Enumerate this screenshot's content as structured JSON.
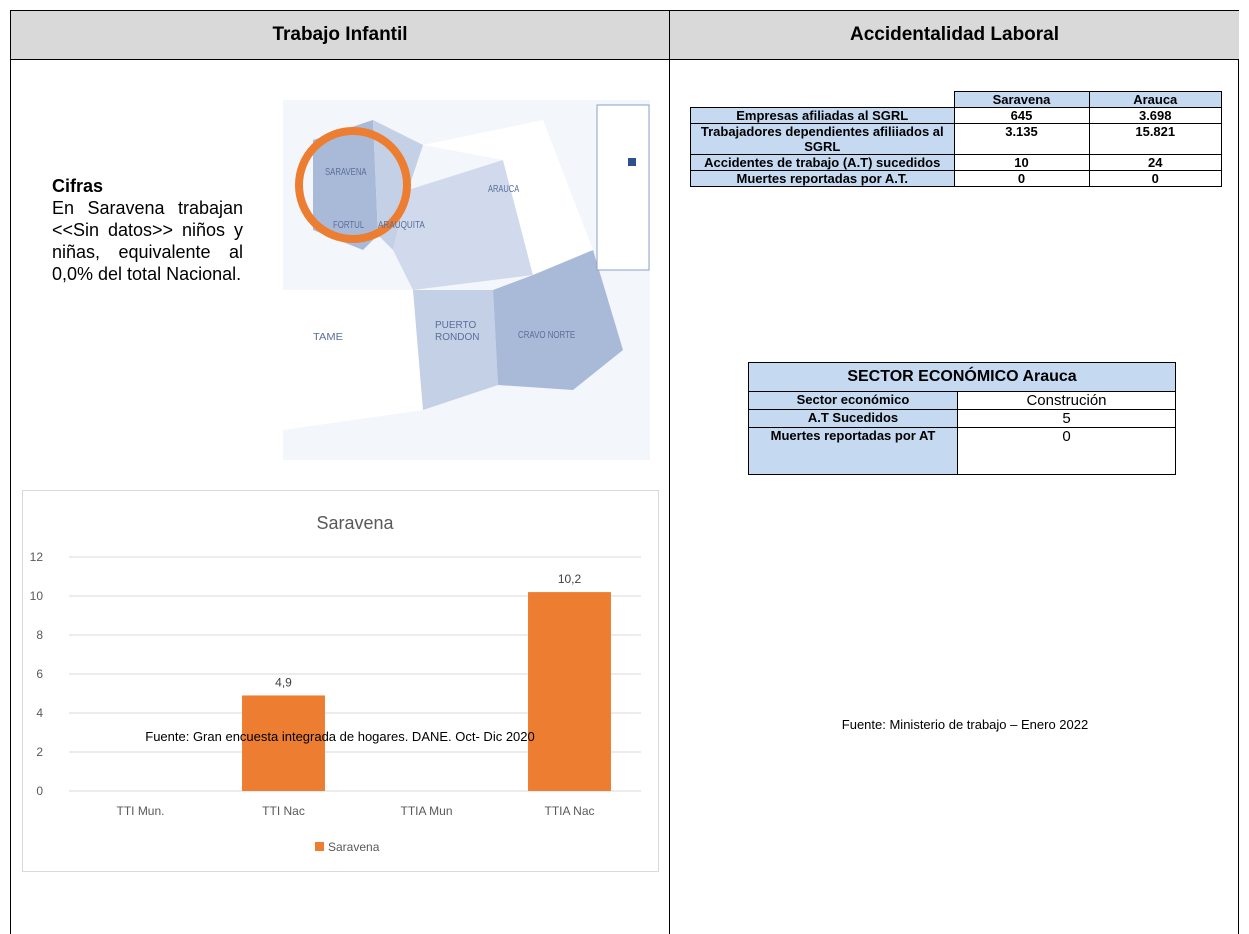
{
  "left": {
    "heading": "Trabajo Infantil",
    "cifras_title": "Cifras",
    "cifras_text": "En Saravena trabajan <<Sin datos>> niños y niñas, equivalente al 0,0% del total Nacional.",
    "map_labels": [
      "SARAVENA",
      "ARAUQUITA",
      "FORTUL",
      "ARAUCA",
      "TAME",
      "PUERTO RONDON",
      "CRAVO NORTE"
    ],
    "source": "Fuente: Gran encuesta integrada de hogares. DANE. Oct- Dic 2020"
  },
  "chart_data": {
    "type": "bar",
    "title": "Saravena",
    "categories": [
      "TTI Mun.",
      "TTI Nac",
      "TTIA Mun",
      "TTIA Nac"
    ],
    "series": [
      {
        "name": "Saravena",
        "color": "#ed7d31",
        "values": [
          null,
          4.9,
          null,
          10.2
        ],
        "value_labels": [
          null,
          "4,9",
          null,
          "10,2"
        ]
      }
    ],
    "ylim": [
      0,
      12
    ],
    "yticks": [
      0,
      2,
      4,
      6,
      8,
      10,
      12
    ],
    "grid": true,
    "legend": "bottom"
  },
  "right": {
    "heading": "Accidentalidad Laboral",
    "table1": {
      "columns": [
        "Saravena",
        "Arauca"
      ],
      "rows": [
        [
          "Empresas afiliadas al SGRL",
          "645",
          "3.698"
        ],
        [
          "Trabajadores dependientes afiliiados al SGRL",
          "3.135",
          "15.821"
        ],
        [
          "Accidentes de trabajo  (A.T) sucedidos",
          "10",
          "24"
        ],
        [
          "Muertes reportadas por A.T.",
          "0",
          "0"
        ]
      ]
    },
    "table2": {
      "title": "SECTOR ECONÓMICO Arauca",
      "rows": [
        [
          "Sector económico",
          "Construción"
        ],
        [
          "A.T Sucedidos",
          "5"
        ],
        [
          "Muertes reportadas por AT",
          "0"
        ]
      ]
    },
    "source": "Fuente: Ministerio de trabajo – Enero 2022"
  }
}
